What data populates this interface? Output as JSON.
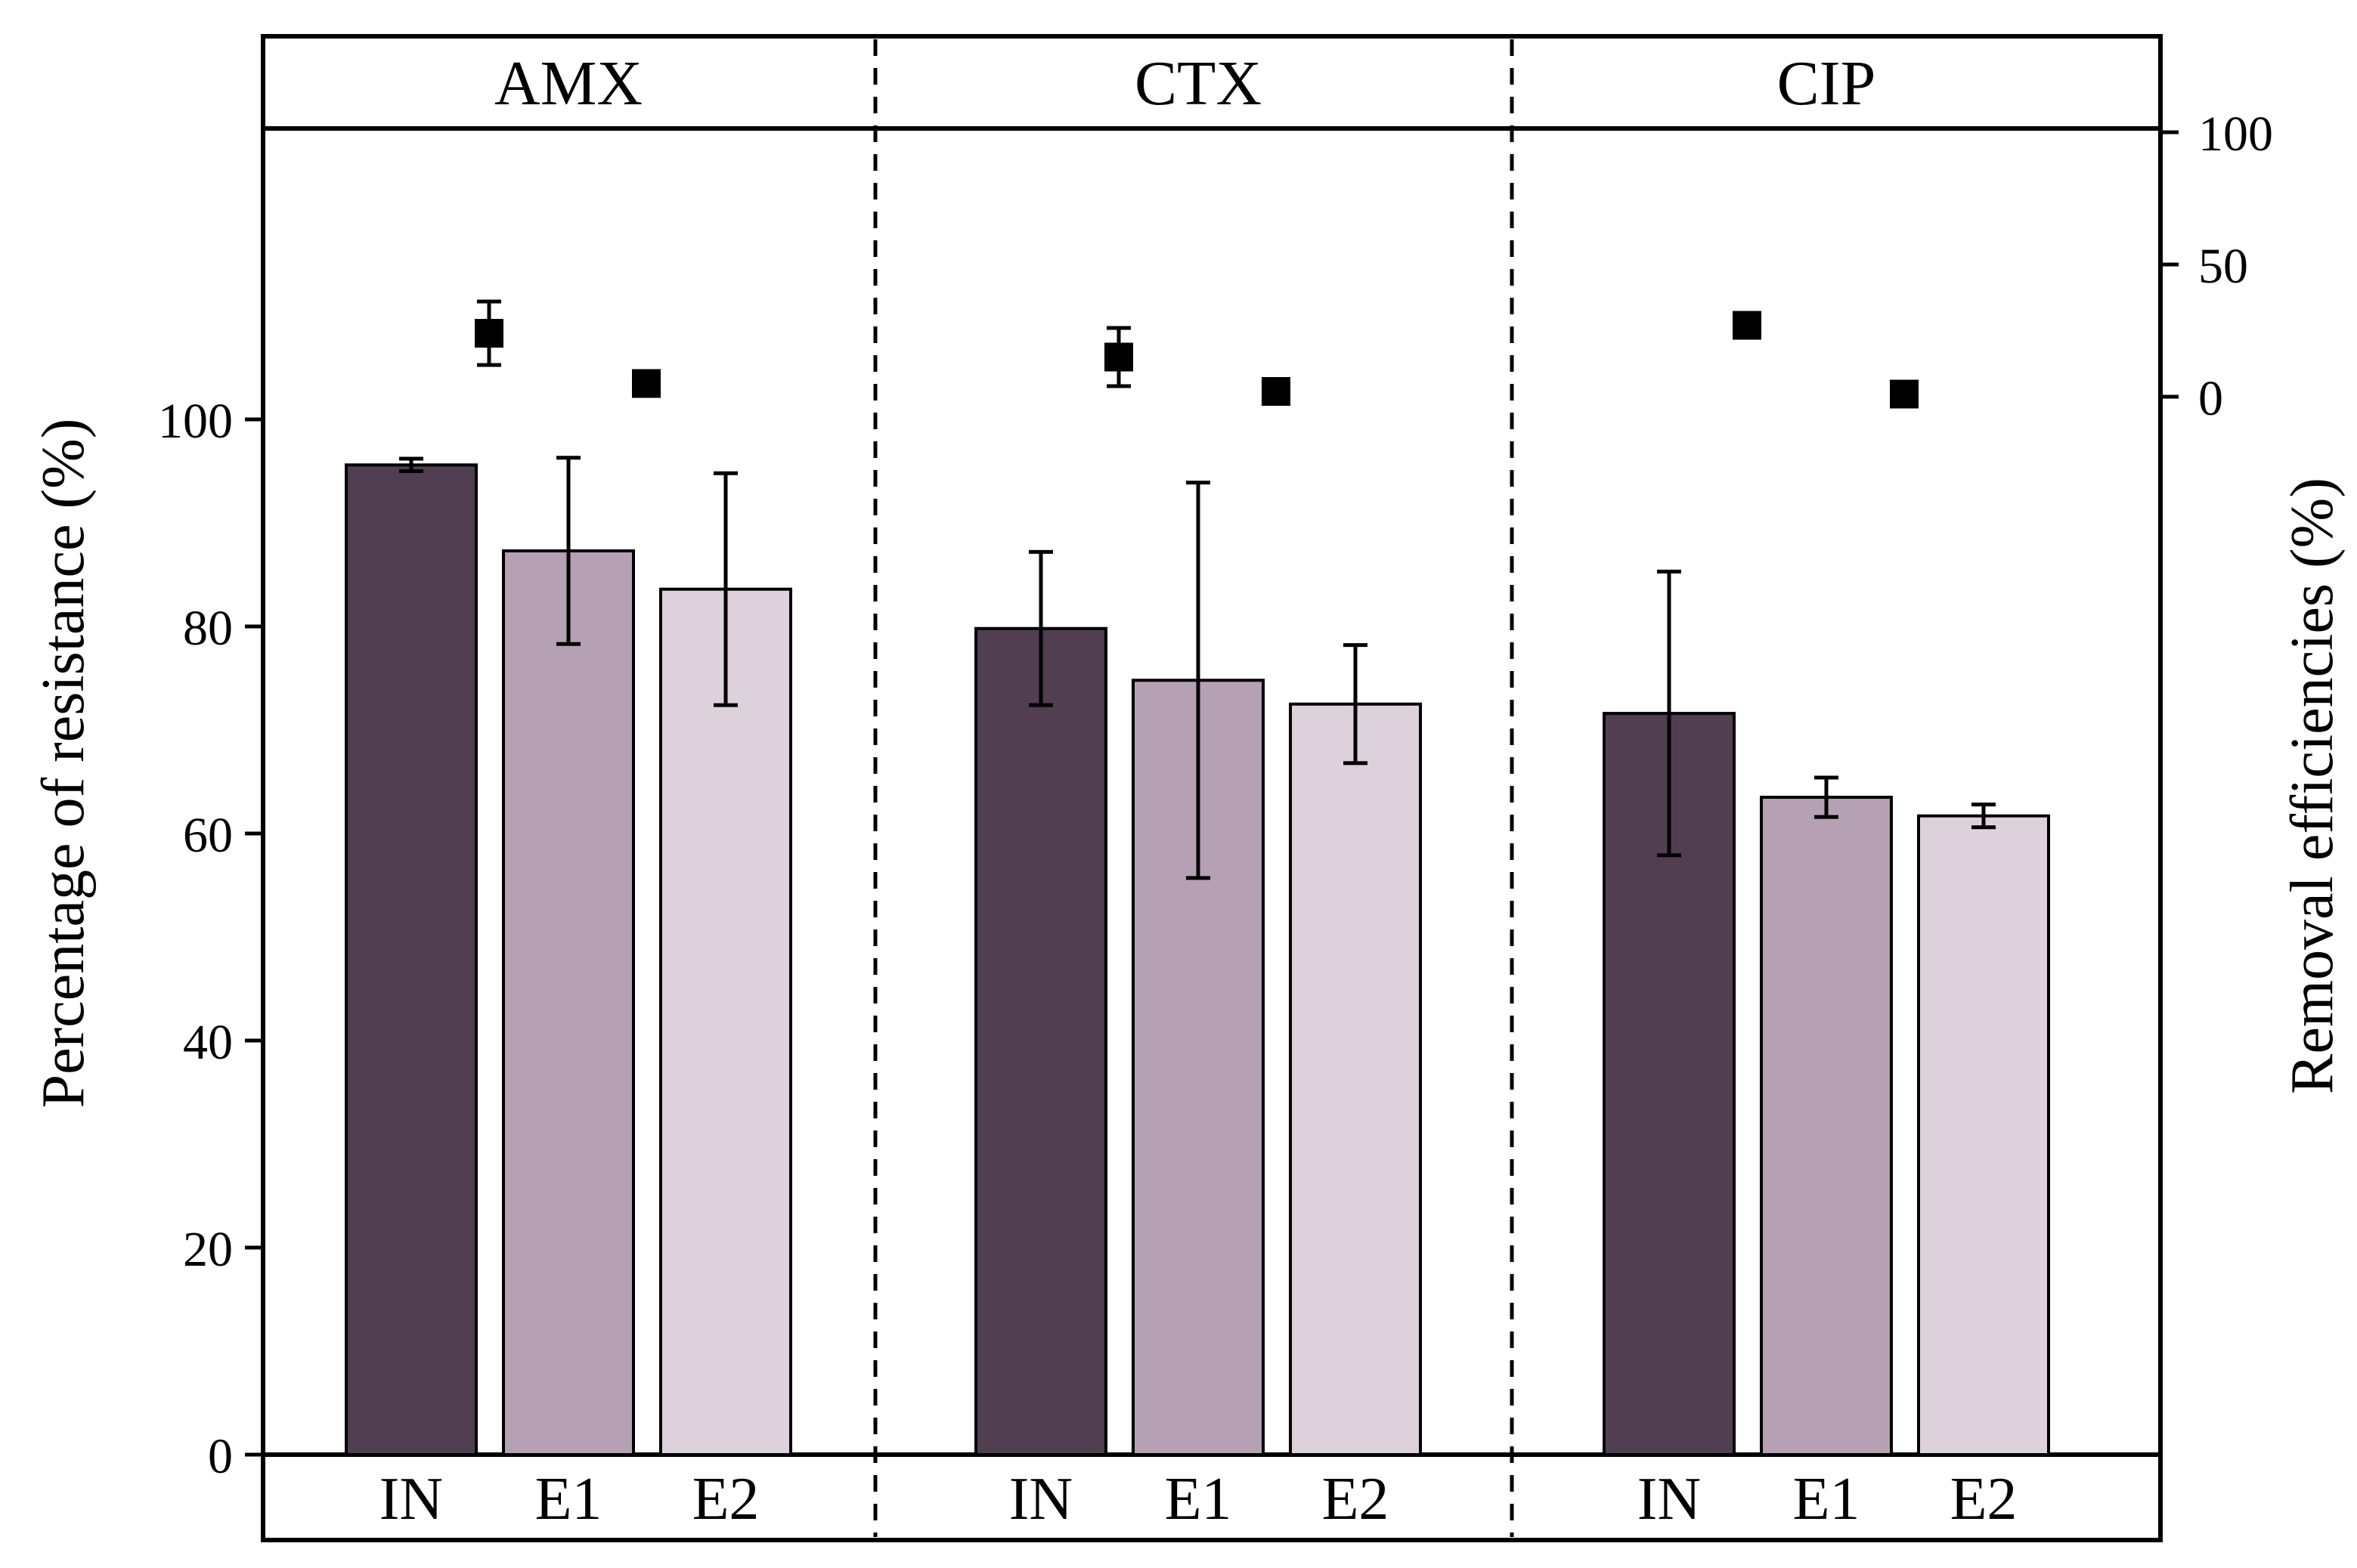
{
  "chart_data": {
    "type": "bar",
    "left_axis": {
      "label": "Percentage of resistance (%)",
      "range": [
        0,
        120
      ],
      "ticks": [
        "0",
        "20",
        "40",
        "60",
        "80",
        "100"
      ]
    },
    "right_axis": {
      "label": "Removal efficiencies (%)",
      "ticks": [
        "0",
        "50",
        "100"
      ]
    },
    "panels": [
      {
        "name": "AMX",
        "categories": [
          "IN",
          "E1",
          "E2"
        ],
        "bars": [
          {
            "category": "IN",
            "value": 95.6,
            "error": 0.6
          },
          {
            "category": "E1",
            "value": 87.3,
            "error": 9.0
          },
          {
            "category": "E2",
            "value": 83.6,
            "error": 11.2
          }
        ],
        "removal": [
          {
            "position": "E1",
            "value": 24,
            "error": 12
          },
          {
            "position": "E2",
            "value": 5,
            "error": 0
          }
        ]
      },
      {
        "name": "CTX",
        "categories": [
          "IN",
          "E1",
          "E2"
        ],
        "bars": [
          {
            "category": "IN",
            "value": 79.8,
            "error": 7.4
          },
          {
            "category": "E1",
            "value": 74.8,
            "error": 19.1
          },
          {
            "category": "E2",
            "value": 72.5,
            "error": 5.7
          }
        ],
        "removal": [
          {
            "position": "E1",
            "value": 15,
            "error": 11
          },
          {
            "position": "E2",
            "value": 2,
            "error": 0
          }
        ]
      },
      {
        "name": "CIP",
        "categories": [
          "IN",
          "E1",
          "E2"
        ],
        "bars": [
          {
            "category": "IN",
            "value": 71.6,
            "error": 13.7
          },
          {
            "category": "E1",
            "value": 63.5,
            "error": 1.9
          },
          {
            "category": "E2",
            "value": 61.7,
            "error": 1.1
          }
        ],
        "removal": [
          {
            "position": "E1",
            "value": 27,
            "error": 0
          },
          {
            "position": "E2",
            "value": 1,
            "error": 0
          }
        ]
      }
    ],
    "colors": {
      "IN": "#513f51",
      "E1": "#b5a1b3",
      "E2": "#ddd2db"
    }
  }
}
